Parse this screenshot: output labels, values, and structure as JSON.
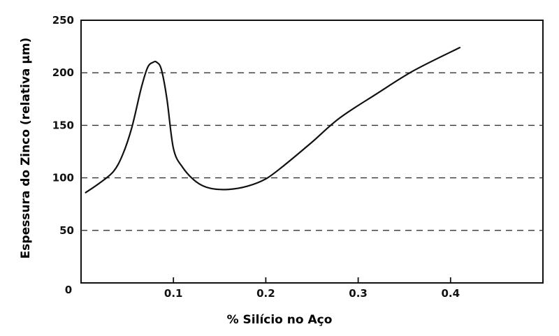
{
  "chart_data": {
    "type": "line",
    "xlabel": "% Silício no Aço",
    "ylabel": "Espessura do Zinco (relativa µm)",
    "xlim": [
      0,
      0.5
    ],
    "ylim": [
      0,
      250
    ],
    "x_ticks": [
      "0.1",
      "0.2",
      "0.3",
      "0.4"
    ],
    "x_tick_values": [
      0.1,
      0.2,
      0.3,
      0.4
    ],
    "origin_label": "0",
    "y_ticks": [
      "50",
      "100",
      "150",
      "200",
      "250"
    ],
    "y_tick_values": [
      50,
      100,
      150,
      200,
      250
    ],
    "grid": "dashed horizontal lines at 50, 100, 150, 200",
    "series": [
      {
        "x": [
          0.005,
          0.02,
          0.035,
          0.045,
          0.055,
          0.065,
          0.072,
          0.078,
          0.082,
          0.087,
          0.093,
          0.1,
          0.11,
          0.125,
          0.14,
          0.16,
          0.18,
          0.2,
          0.22,
          0.25,
          0.28,
          0.32,
          0.36,
          0.41
        ],
        "y": [
          86,
          95,
          106,
          122,
          148,
          185,
          205,
          210,
          210,
          203,
          175,
          128,
          110,
          96,
          90,
          89,
          92,
          99,
          112,
          134,
          157,
          180,
          202,
          224
        ]
      }
    ],
    "line_color": "#111111"
  }
}
